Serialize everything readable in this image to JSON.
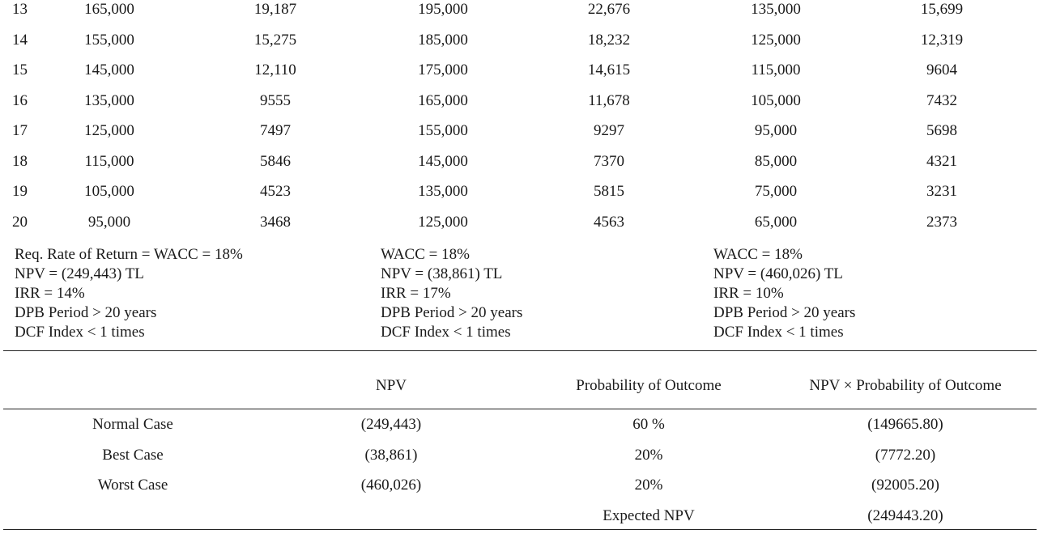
{
  "cashflow_rows": [
    [
      "13",
      "165,000",
      "19,187",
      "195,000",
      "22,676",
      "135,000",
      "15,699"
    ],
    [
      "14",
      "155,000",
      "15,275",
      "185,000",
      "18,232",
      "125,000",
      "12,319"
    ],
    [
      "15",
      "145,000",
      "12,110",
      "175,000",
      "14,615",
      "115,000",
      "9604"
    ],
    [
      "16",
      "135,000",
      "9555",
      "165,000",
      "11,678",
      "105,000",
      "7432"
    ],
    [
      "17",
      "125,000",
      "7497",
      "155,000",
      "9297",
      "95,000",
      "5698"
    ],
    [
      "18",
      "115,000",
      "5846",
      "145,000",
      "7370",
      "85,000",
      "4321"
    ],
    [
      "19",
      "105,000",
      "4523",
      "135,000",
      "5815",
      "75,000",
      "3231"
    ],
    [
      "20",
      "95,000",
      "3468",
      "125,000",
      "4563",
      "65,000",
      "2373"
    ]
  ],
  "summaries": [
    [
      "Req. Rate of Return = WACC = 18%",
      "NPV = (249,443) TL",
      "IRR = 14%",
      "DPB Period > 20 years",
      "DCF Index < 1 times"
    ],
    [
      "WACC = 18%",
      "NPV = (38,861) TL",
      "IRR = 17%",
      "DPB Period > 20 years",
      "DCF Index < 1 times"
    ],
    [
      "WACC = 18%",
      "NPV = (460,026) TL",
      "IRR = 10%",
      "DPB Period > 20 years",
      "DCF Index < 1 times"
    ]
  ],
  "expected": {
    "headers": [
      "",
      "NPV",
      "Probability of Outcome",
      "NPV × Probability of Outcome"
    ],
    "rows": [
      [
        "Normal Case",
        "(249,443)",
        "60 %",
        "(149665.80)"
      ],
      [
        "Best Case",
        "(38,861)",
        "20%",
        "(7772.20)"
      ],
      [
        "Worst Case",
        "(460,026)",
        "20%",
        "(92005.20)"
      ],
      [
        "",
        "",
        "Expected NPV",
        "(249443.20)"
      ]
    ]
  }
}
